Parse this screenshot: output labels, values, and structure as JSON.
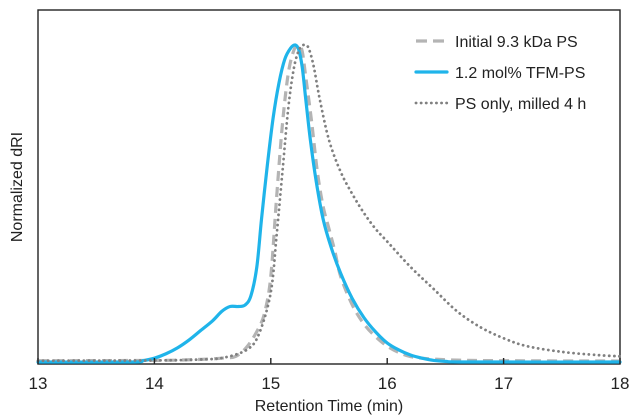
{
  "chart_data": {
    "type": "line",
    "title": "",
    "xlabel": "Retention Time (min)",
    "ylabel": "Normalized dRI",
    "xlim": [
      13,
      18
    ],
    "ylim": [
      0,
      1.0
    ],
    "xticks": [
      "13",
      "14",
      "15",
      "16",
      "17",
      "18"
    ],
    "grid": false,
    "legend_position": "top-right",
    "series": [
      {
        "name": "Initial 9.3 kDa PS",
        "color": "#b4b4b4",
        "style": "dashed",
        "x": [
          13.0,
          14.0,
          14.3,
          14.5,
          14.6,
          14.7,
          14.8,
          14.9,
          14.95,
          15.0,
          15.05,
          15.1,
          15.15,
          15.2,
          15.24,
          15.27,
          15.3,
          15.35,
          15.4,
          15.45,
          15.5,
          15.55,
          15.6,
          15.7,
          15.8,
          15.9,
          16.0,
          16.1,
          16.2,
          16.3,
          16.4,
          16.6,
          17.0,
          18.0
        ],
        "y": [
          0.004,
          0.005,
          0.007,
          0.01,
          0.013,
          0.018,
          0.05,
          0.11,
          0.16,
          0.27,
          0.52,
          0.75,
          0.91,
          0.985,
          1.0,
          0.98,
          0.9,
          0.76,
          0.6,
          0.49,
          0.42,
          0.35,
          0.27,
          0.18,
          0.12,
          0.08,
          0.05,
          0.03,
          0.017,
          0.012,
          0.009,
          0.006,
          0.004,
          0.003
        ]
      },
      {
        "name": "1.2 mol% TFM-PS",
        "color": "#1fb4ea",
        "style": "solid",
        "x": [
          13.0,
          13.8,
          13.9,
          14.0,
          14.1,
          14.2,
          14.3,
          14.4,
          14.5,
          14.58,
          14.65,
          14.72,
          14.78,
          14.83,
          14.88,
          14.92,
          14.97,
          15.02,
          15.07,
          15.12,
          15.17,
          15.21,
          15.24,
          15.27,
          15.3,
          15.34,
          15.39,
          15.45,
          15.52,
          15.6,
          15.7,
          15.8,
          15.9,
          16.0,
          16.1,
          16.2,
          16.3,
          16.4,
          16.5,
          16.7,
          18.0
        ],
        "y": [
          0.0,
          0.0,
          0.004,
          0.012,
          0.026,
          0.045,
          0.07,
          0.1,
          0.13,
          0.16,
          0.175,
          0.175,
          0.18,
          0.21,
          0.3,
          0.45,
          0.62,
          0.77,
          0.88,
          0.955,
          0.99,
          1.0,
          0.985,
          0.93,
          0.83,
          0.7,
          0.57,
          0.45,
          0.36,
          0.28,
          0.2,
          0.14,
          0.095,
          0.06,
          0.038,
          0.022,
          0.012,
          0.005,
          0.002,
          0.0,
          0.0
        ]
      },
      {
        "name": "PS only, milled 4 h",
        "color": "#808080",
        "style": "dotted",
        "x": [
          13.0,
          14.0,
          14.4,
          14.6,
          14.8,
          14.9,
          15.0,
          15.05,
          15.1,
          15.15,
          15.2,
          15.25,
          15.3,
          15.33,
          15.37,
          15.42,
          15.5,
          15.6,
          15.7,
          15.8,
          15.9,
          16.0,
          16.2,
          16.4,
          16.6,
          16.8,
          17.0,
          17.2,
          17.5,
          17.8,
          18.0
        ],
        "y": [
          0.004,
          0.005,
          0.008,
          0.014,
          0.04,
          0.09,
          0.22,
          0.4,
          0.6,
          0.8,
          0.93,
          0.99,
          1.0,
          0.985,
          0.93,
          0.83,
          0.7,
          0.6,
          0.53,
          0.47,
          0.42,
          0.38,
          0.3,
          0.23,
          0.16,
          0.11,
          0.075,
          0.05,
          0.032,
          0.022,
          0.018
        ]
      }
    ]
  }
}
